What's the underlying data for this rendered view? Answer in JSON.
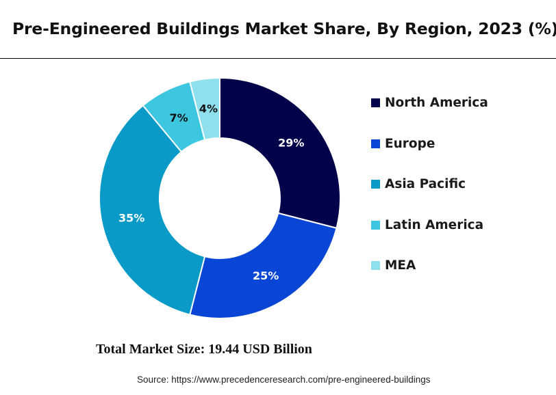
{
  "title": "Pre-Engineered Buildings Market Share, By Region, 2023 (%)",
  "total_text": "Total Market Size: 19.44 USD Billion",
  "source_text": "Source: https://www.precedenceresearch.com/pre-engineered-buildings",
  "chart_data": {
    "type": "pie",
    "donut": true,
    "title": "Pre-Engineered Buildings Market Share, By Region, 2023 (%)",
    "legend_position": "right",
    "categories": [
      "North America",
      "Europe",
      "Asia Pacific",
      "Latin America",
      "MEA"
    ],
    "values": [
      29,
      25,
      35,
      7,
      4
    ],
    "labels": [
      "29%",
      "25%",
      "35%",
      "7%",
      "4%"
    ],
    "colors": [
      "#02024a",
      "#0a46d6",
      "#0a9ac7",
      "#3cc6e0",
      "#8ee0ef"
    ],
    "label_colors": [
      "#ffffff",
      "#ffffff",
      "#ffffff",
      "#111111",
      "#111111"
    ]
  }
}
